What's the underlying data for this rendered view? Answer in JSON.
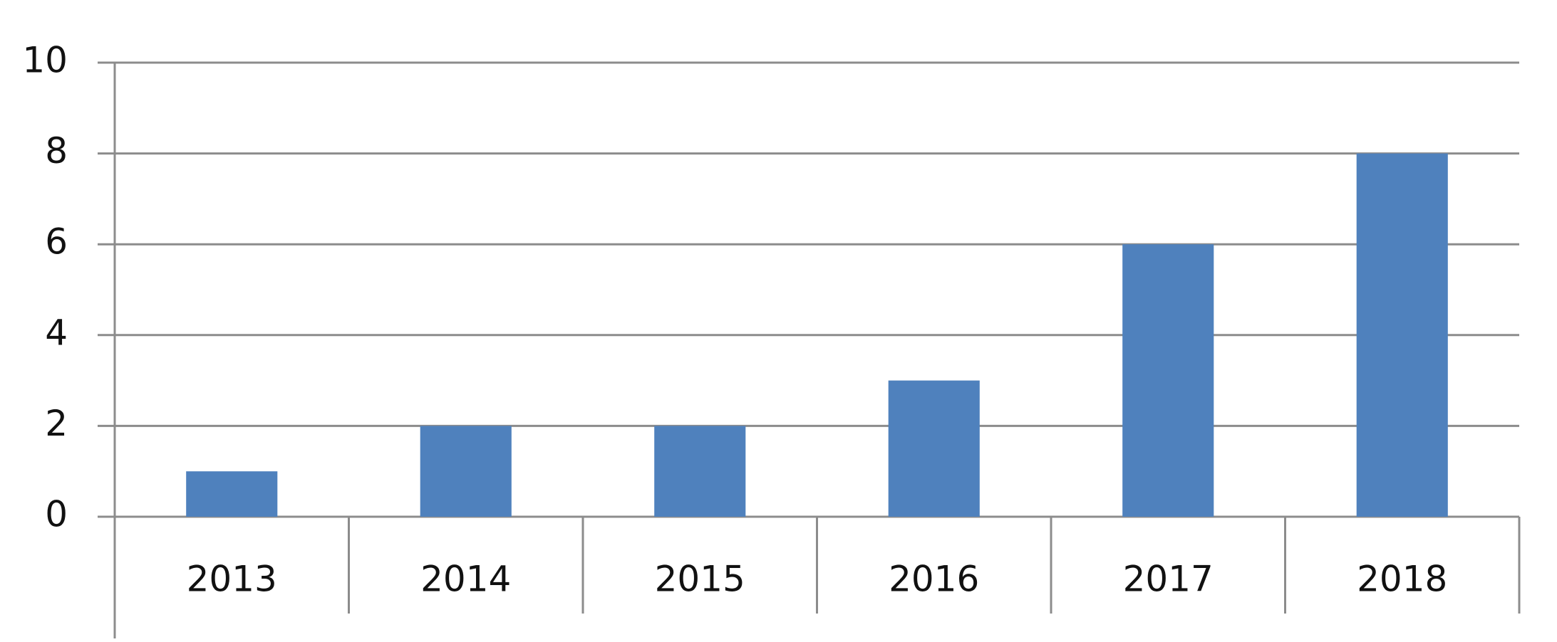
{
  "chart_data": {
    "type": "bar",
    "categories": [
      "2013",
      "2014",
      "2015",
      "2016",
      "2017",
      "2018"
    ],
    "values": [
      1,
      2,
      2,
      3,
      6,
      8
    ],
    "color": "#4f81bd",
    "ylim": [
      0,
      10
    ],
    "yticks": [
      0,
      2,
      4,
      6,
      8,
      10
    ],
    "grid": true
  }
}
